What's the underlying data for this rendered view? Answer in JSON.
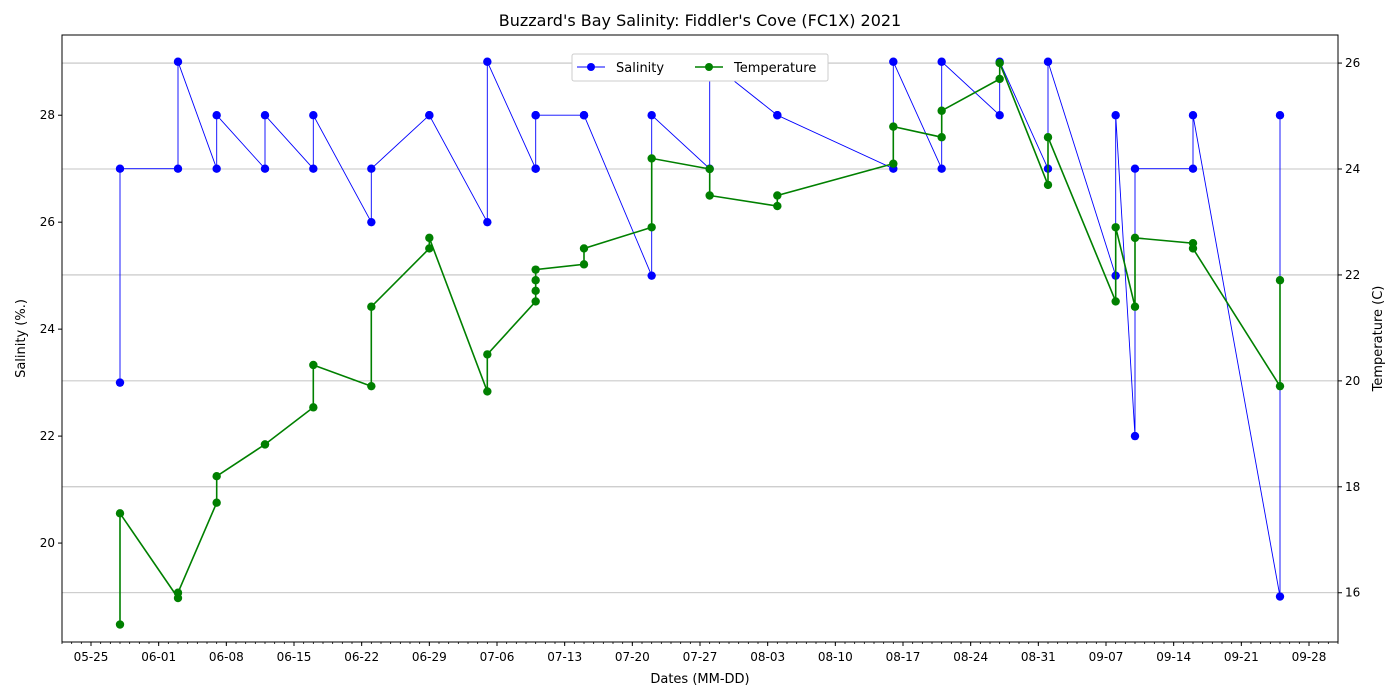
{
  "chart_data": {
    "type": "line",
    "title": "Buzzard's Bay Salinity: Fiddler's Cove (FC1X) 2021",
    "xlabel": "Dates (MM-DD)",
    "ylabel": "Salinity (%.)",
    "y2label": "Temperature (C)",
    "x_date_range": [
      "2021-05-22",
      "2021-10-01"
    ],
    "ylim": [
      18.15,
      29.5
    ],
    "y2lim": [
      15.07,
      26.53
    ],
    "y_ticks": [
      20,
      22,
      24,
      26,
      28
    ],
    "y2_ticks": [
      16,
      18,
      20,
      22,
      24,
      26
    ],
    "x_ticks": [
      "05-25",
      "06-01",
      "06-08",
      "06-15",
      "06-22",
      "06-29",
      "07-06",
      "07-13",
      "07-20",
      "07-27",
      "08-03",
      "08-10",
      "08-17",
      "08-24",
      "08-31",
      "09-07",
      "09-14",
      "09-21",
      "09-28"
    ],
    "x_tick_dates": [
      "2021-05-25",
      "2021-06-01",
      "2021-06-08",
      "2021-06-15",
      "2021-06-22",
      "2021-06-29",
      "2021-07-06",
      "2021-07-13",
      "2021-07-20",
      "2021-07-27",
      "2021-08-03",
      "2021-08-10",
      "2021-08-17",
      "2021-08-24",
      "2021-08-31",
      "2021-09-07",
      "2021-09-14",
      "2021-09-21",
      "2021-09-28"
    ],
    "grid": "y2-major",
    "legend": "top-center",
    "series": [
      {
        "name": "Salinity",
        "axis": "left",
        "color": "#0000ff",
        "points": [
          {
            "x": "2021-05-28",
            "y": 23
          },
          {
            "x": "2021-05-28",
            "y": 27
          },
          {
            "x": "2021-06-03",
            "y": 27
          },
          {
            "x": "2021-06-03",
            "y": 29
          },
          {
            "x": "2021-06-07",
            "y": 27
          },
          {
            "x": "2021-06-07",
            "y": 28
          },
          {
            "x": "2021-06-12",
            "y": 27
          },
          {
            "x": "2021-06-12",
            "y": 28
          },
          {
            "x": "2021-06-17",
            "y": 27
          },
          {
            "x": "2021-06-17",
            "y": 28
          },
          {
            "x": "2021-06-23",
            "y": 26
          },
          {
            "x": "2021-06-23",
            "y": 27
          },
          {
            "x": "2021-06-29",
            "y": 28
          },
          {
            "x": "2021-06-29",
            "y": 28
          },
          {
            "x": "2021-07-05",
            "y": 26
          },
          {
            "x": "2021-07-05",
            "y": 29
          },
          {
            "x": "2021-07-10",
            "y": 27
          },
          {
            "x": "2021-07-10",
            "y": 27
          },
          {
            "x": "2021-07-10",
            "y": 28
          },
          {
            "x": "2021-07-10",
            "y": 28
          },
          {
            "x": "2021-07-15",
            "y": 28
          },
          {
            "x": "2021-07-15",
            "y": 28
          },
          {
            "x": "2021-07-22",
            "y": 25
          },
          {
            "x": "2021-07-22",
            "y": 28
          },
          {
            "x": "2021-07-28",
            "y": 27
          },
          {
            "x": "2021-07-28",
            "y": 29
          },
          {
            "x": "2021-08-04",
            "y": 28
          },
          {
            "x": "2021-08-04",
            "y": 28
          },
          {
            "x": "2021-08-16",
            "y": 27
          },
          {
            "x": "2021-08-16",
            "y": 29
          },
          {
            "x": "2021-08-21",
            "y": 27
          },
          {
            "x": "2021-08-21",
            "y": 29
          },
          {
            "x": "2021-08-27",
            "y": 28
          },
          {
            "x": "2021-08-27",
            "y": 29
          },
          {
            "x": "2021-09-01",
            "y": 27
          },
          {
            "x": "2021-09-01",
            "y": 29
          },
          {
            "x": "2021-09-08",
            "y": 25
          },
          {
            "x": "2021-09-08",
            "y": 28
          },
          {
            "x": "2021-09-10",
            "y": 22
          },
          {
            "x": "2021-09-10",
            "y": 27
          },
          {
            "x": "2021-09-16",
            "y": 27
          },
          {
            "x": "2021-09-16",
            "y": 28
          },
          {
            "x": "2021-09-25",
            "y": 19
          },
          {
            "x": "2021-09-25",
            "y": 28
          }
        ]
      },
      {
        "name": "Temperature",
        "axis": "right",
        "color": "#008000",
        "points": [
          {
            "x": "2021-05-28",
            "y": 15.4
          },
          {
            "x": "2021-05-28",
            "y": 17.5
          },
          {
            "x": "2021-06-03",
            "y": 15.9
          },
          {
            "x": "2021-06-03",
            "y": 16.0
          },
          {
            "x": "2021-06-07",
            "y": 17.7
          },
          {
            "x": "2021-06-07",
            "y": 18.2
          },
          {
            "x": "2021-06-12",
            "y": 18.8
          },
          {
            "x": "2021-06-12",
            "y": 18.8
          },
          {
            "x": "2021-06-17",
            "y": 19.5
          },
          {
            "x": "2021-06-17",
            "y": 20.3
          },
          {
            "x": "2021-06-23",
            "y": 19.9
          },
          {
            "x": "2021-06-23",
            "y": 21.4
          },
          {
            "x": "2021-06-29",
            "y": 22.5
          },
          {
            "x": "2021-06-29",
            "y": 22.7
          },
          {
            "x": "2021-07-05",
            "y": 19.8
          },
          {
            "x": "2021-07-05",
            "y": 20.5
          },
          {
            "x": "2021-07-10",
            "y": 21.5
          },
          {
            "x": "2021-07-10",
            "y": 21.7
          },
          {
            "x": "2021-07-10",
            "y": 21.9
          },
          {
            "x": "2021-07-10",
            "y": 22.1
          },
          {
            "x": "2021-07-15",
            "y": 22.2
          },
          {
            "x": "2021-07-15",
            "y": 22.5
          },
          {
            "x": "2021-07-22",
            "y": 22.9
          },
          {
            "x": "2021-07-22",
            "y": 24.2
          },
          {
            "x": "2021-07-28",
            "y": 24.0
          },
          {
            "x": "2021-07-28",
            "y": 23.5
          },
          {
            "x": "2021-08-04",
            "y": 23.3
          },
          {
            "x": "2021-08-04",
            "y": 23.5
          },
          {
            "x": "2021-08-16",
            "y": 24.1
          },
          {
            "x": "2021-08-16",
            "y": 24.8
          },
          {
            "x": "2021-08-21",
            "y": 24.6
          },
          {
            "x": "2021-08-21",
            "y": 25.1
          },
          {
            "x": "2021-08-27",
            "y": 25.7
          },
          {
            "x": "2021-08-27",
            "y": 26.0
          },
          {
            "x": "2021-09-01",
            "y": 23.7
          },
          {
            "x": "2021-09-01",
            "y": 24.6
          },
          {
            "x": "2021-09-08",
            "y": 21.5
          },
          {
            "x": "2021-09-08",
            "y": 22.9
          },
          {
            "x": "2021-09-10",
            "y": 21.4
          },
          {
            "x": "2021-09-10",
            "y": 22.7
          },
          {
            "x": "2021-09-16",
            "y": 22.6
          },
          {
            "x": "2021-09-16",
            "y": 22.5
          },
          {
            "x": "2021-09-25",
            "y": 19.9
          },
          {
            "x": "2021-09-25",
            "y": 21.9
          }
        ]
      }
    ]
  }
}
